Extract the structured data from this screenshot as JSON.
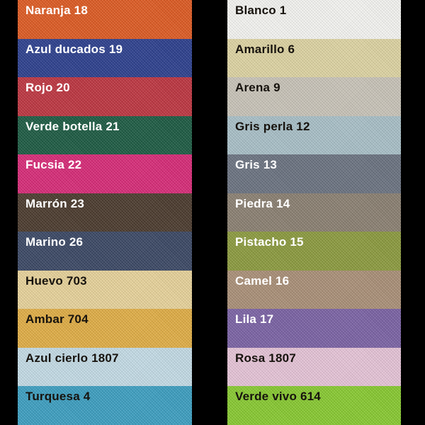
{
  "page": {
    "background_color": "#000000",
    "description": "Fabric color swatch chart, two columns of labeled linen samples"
  },
  "columns": [
    {
      "id": "left",
      "swatches": [
        {
          "label": "Naranja 18",
          "color": "#dd5a22",
          "text": "light"
        },
        {
          "label": "Azul ducados 19",
          "color": "#2c3f8d",
          "text": "light"
        },
        {
          "label": "Rojo 20",
          "color": "#bd3540",
          "text": "light"
        },
        {
          "label": "Verde botella 21",
          "color": "#1c5a42",
          "text": "light"
        },
        {
          "label": "Fucsia 22",
          "color": "#d72a77",
          "text": "light"
        },
        {
          "label": "Marrón 23",
          "color": "#4a3a2d",
          "text": "light"
        },
        {
          "label": "Marino 26",
          "color": "#3a4764",
          "text": "light"
        },
        {
          "label": "Huevo 703",
          "color": "#e7d29a",
          "text": "dark"
        },
        {
          "label": "Ambar 704",
          "color": "#e0ad45",
          "text": "dark"
        },
        {
          "label": "Azul cierlo 1807",
          "color": "#c3dbe5",
          "text": "dark"
        },
        {
          "label": "Turquesa 4",
          "color": "#3c9ec0",
          "text": "dark"
        }
      ]
    },
    {
      "id": "right",
      "swatches": [
        {
          "label": "Blanco 1",
          "color": "#f4f4f1",
          "text": "dark"
        },
        {
          "label": "Amarillo 6",
          "color": "#ddd3a2",
          "text": "dark"
        },
        {
          "label": "Arena 9",
          "color": "#c8c3b8",
          "text": "dark"
        },
        {
          "label": "Gris perla 12",
          "color": "#a8bfc7",
          "text": "dark"
        },
        {
          "label": "Gris 13",
          "color": "#6a7280",
          "text": "light"
        },
        {
          "label": "Piedra 14",
          "color": "#8a7f71",
          "text": "light"
        },
        {
          "label": "Pistacho 15",
          "color": "#8b9a3e",
          "text": "light"
        },
        {
          "label": "Camel 16",
          "color": "#a98f77",
          "text": "light"
        },
        {
          "label": "Lila 17",
          "color": "#7a62a4",
          "text": "light"
        },
        {
          "label": "Rosa 1807",
          "color": "#e5c4d7",
          "text": "dark"
        },
        {
          "label": "Verde vivo 614",
          "color": "#87c930",
          "text": "dark"
        }
      ]
    }
  ]
}
